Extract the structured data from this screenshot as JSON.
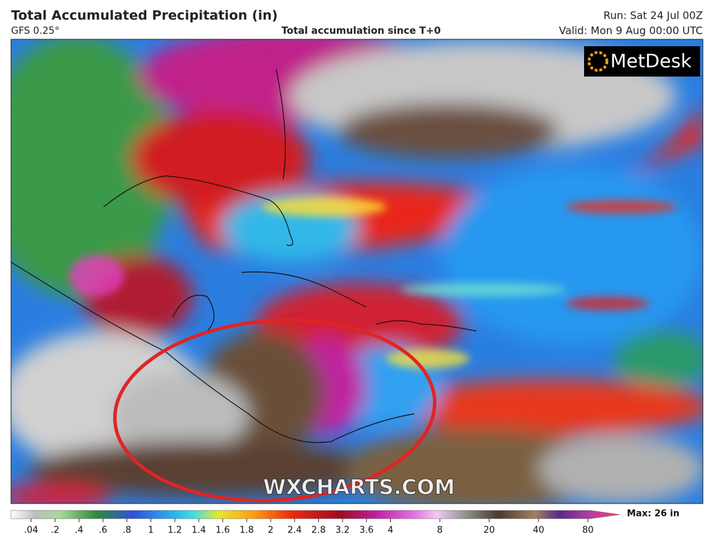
{
  "header": {
    "title": "Total Accumulated Precipitation (in)",
    "model": "GFS 0.25°",
    "subtitle": "Total accumulation since T+0",
    "run": "Run: Sat 24 Jul 00Z",
    "valid": "Valid: Mon 9 Aug 00:00 UTC"
  },
  "logo": "MetDesk",
  "watermark": "WXCHARTS.COM",
  "colorbar": {
    "labels": [
      ".04",
      ".2",
      ".4",
      ".6",
      ".8",
      "1",
      "1.2",
      "1.4",
      "1.6",
      "1.8",
      "2",
      "2.4",
      "2.8",
      "3.2",
      "3.6",
      "4",
      "8",
      "20",
      "40",
      "80"
    ],
    "max_label": "Max: 26 in"
  }
}
